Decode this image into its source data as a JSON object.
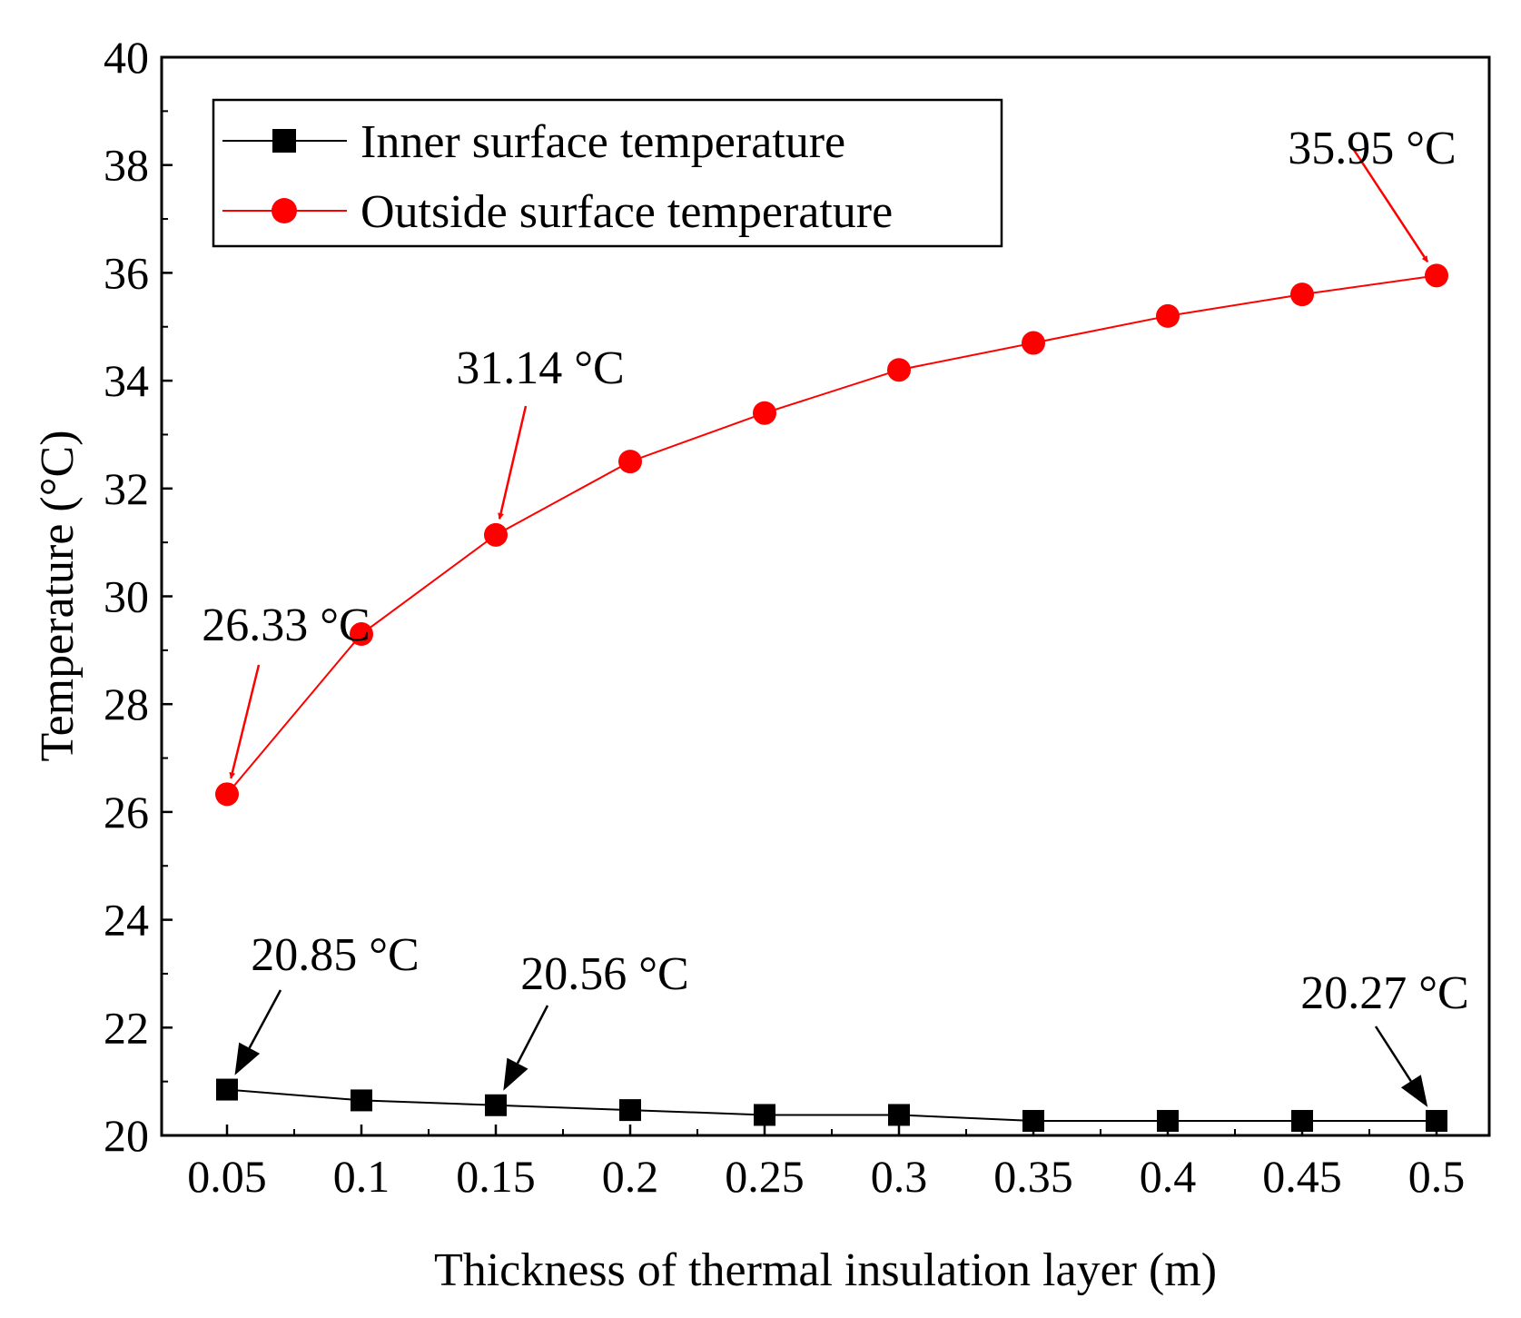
{
  "chart_data": {
    "type": "line",
    "xlabel": "Thickness of thermal insulation layer (m)",
    "ylabel": "Temperature (°C)",
    "ylim": [
      20,
      40
    ],
    "yticks": [
      "20",
      "22",
      "24",
      "26",
      "28",
      "30",
      "32",
      "34",
      "36",
      "38",
      "40"
    ],
    "categories": [
      "0.05",
      "0.1",
      "0.15",
      "0.2",
      "0.25",
      "0.3",
      "0.35",
      "0.4",
      "0.45",
      "0.5"
    ],
    "grid": false,
    "legend_position": "top-left",
    "series": [
      {
        "name": "Inner surface temperature",
        "color": "#000000",
        "marker": "square",
        "values": [
          20.85,
          20.65,
          20.56,
          20.47,
          20.38,
          20.38,
          20.27,
          20.27,
          20.27,
          20.27
        ]
      },
      {
        "name": "Outside surface temperature",
        "color": "#ff0000",
        "marker": "circle",
        "values": [
          26.33,
          29.3,
          31.14,
          32.5,
          33.4,
          34.2,
          34.7,
          35.2,
          35.6,
          35.95
        ]
      }
    ],
    "annotations": [
      {
        "series": 1,
        "index": 0,
        "text": "26.33 °C"
      },
      {
        "series": 1,
        "index": 2,
        "text": "31.14 °C"
      },
      {
        "series": 1,
        "index": 9,
        "text": "35.95 °C"
      },
      {
        "series": 0,
        "index": 0,
        "text": "20.85 °C"
      },
      {
        "series": 0,
        "index": 2,
        "text": "20.56 °C"
      },
      {
        "series": 0,
        "index": 9,
        "text": "20.27 °C"
      }
    ]
  }
}
